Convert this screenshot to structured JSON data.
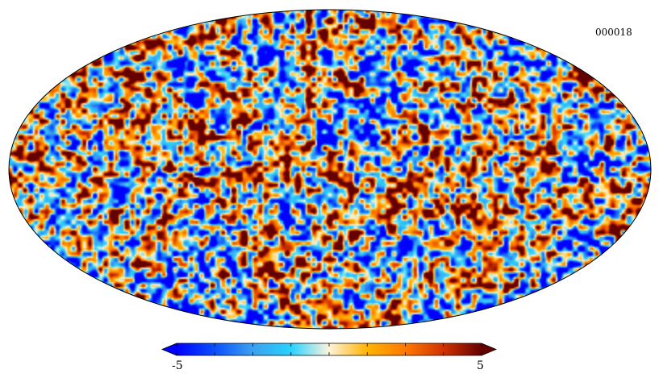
{
  "map": {
    "label": "000018",
    "projection": "mollweide",
    "colormap": "planck"
  },
  "colorbar": {
    "min_label": "-5",
    "max_label": "5",
    "min": -5,
    "max": 5,
    "ticks": [
      -5,
      -3.75,
      -2.5,
      -1.25,
      0,
      1.25,
      2.5,
      3.75,
      5
    ],
    "stops": [
      "#0000ff",
      "#0a50ff",
      "#3ca0f0",
      "#28d2ff",
      "#fff3dc",
      "#ffb400",
      "#ff7800",
      "#d23200",
      "#640000"
    ]
  }
}
